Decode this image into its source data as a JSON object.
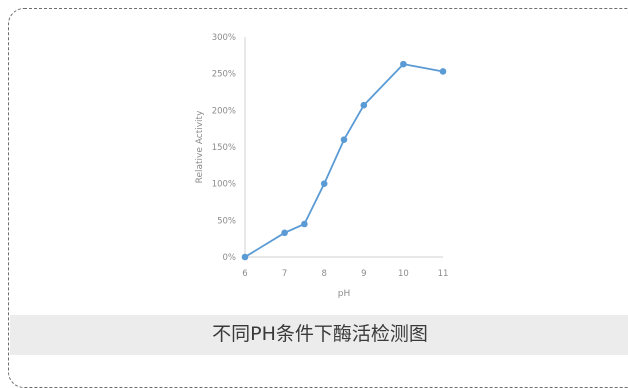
{
  "caption": "不同PH条件下酶活检测图",
  "chart_data": {
    "type": "line",
    "x": [
      6,
      7,
      7.5,
      8,
      8.5,
      9,
      10,
      11
    ],
    "series": [
      {
        "values": [
          0,
          33,
          45,
          100,
          160,
          207,
          263,
          253
        ]
      }
    ],
    "xlabel": "pH",
    "ylabel": "Relative Activity",
    "y_ticks": [
      "0%",
      "50%",
      "100%",
      "150%",
      "200%",
      "250%",
      "300%"
    ],
    "x_ticks": [
      "6",
      "7",
      "8",
      "9",
      "10",
      "11"
    ],
    "ylim": [
      0,
      300
    ],
    "xlim": [
      6,
      11
    ],
    "grid": false,
    "line_color": "#5b9bd5"
  }
}
